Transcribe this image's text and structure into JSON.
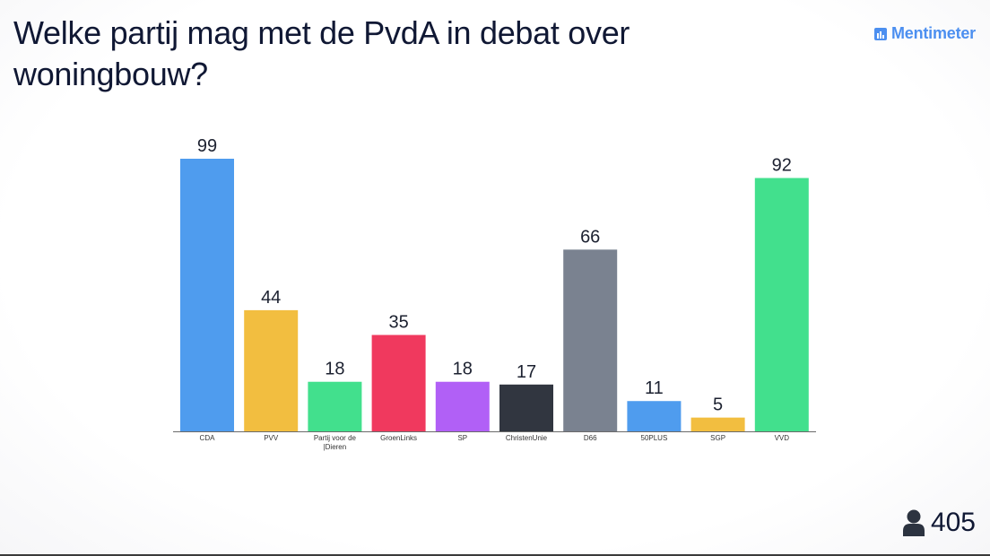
{
  "header": {
    "title": "Welke partij mag met de PvdA in debat over woningbouw?",
    "brand": "Mentimeter",
    "brand_color": "#4c8ff0"
  },
  "footer": {
    "participants_icon": "person-icon",
    "participants_count": "405"
  },
  "chart_data": {
    "type": "bar",
    "title": "",
    "xlabel": "",
    "ylabel": "",
    "categories": [
      "CDA",
      "PVV",
      "Partij voor de |Dieren",
      "GroenLinks",
      "SP",
      "ChristenUnie",
      "D66",
      "50PLUS",
      "SGP",
      "VVD"
    ],
    "values": [
      99,
      44,
      18,
      35,
      18,
      17,
      66,
      11,
      5,
      92
    ],
    "colors": [
      "#4f9cee",
      "#f2be40",
      "#42e08d",
      "#f0395e",
      "#b160f6",
      "#313640",
      "#7a8290",
      "#4f9cee",
      "#f2be40",
      "#42e08d"
    ],
    "ylim": [
      0,
      99
    ],
    "grid": false,
    "data_labels": true
  }
}
